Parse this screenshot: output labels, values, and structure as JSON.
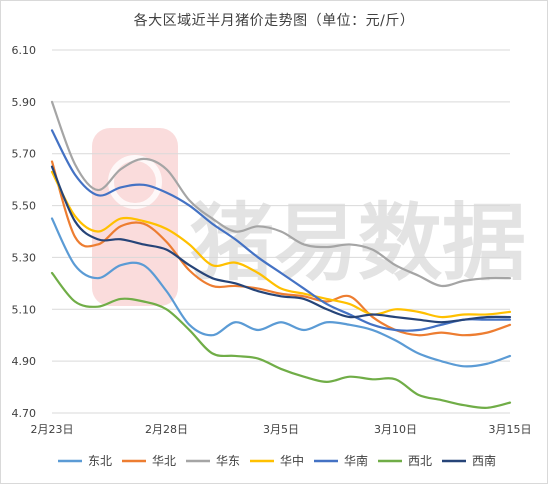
{
  "chart_data": {
    "type": "line",
    "title": "各大区域近半月猪价走势图（单位：元/斤）",
    "watermark": "猪易数据",
    "xlabel": "",
    "ylabel": "",
    "x_ticks": [
      "2月23日",
      "2月28日",
      "3月5日",
      "3月10日",
      "3月15日"
    ],
    "x": [
      "2月23日",
      "2月24日",
      "2月25日",
      "2月26日",
      "2月27日",
      "2月28日",
      "3月1日",
      "3月2日",
      "3月3日",
      "3月4日",
      "3月5日",
      "3月6日",
      "3月7日",
      "3月8日",
      "3月9日",
      "3月10日",
      "3月11日",
      "3月12日",
      "3月13日",
      "3月14日",
      "3月15日"
    ],
    "ylim": [
      4.7,
      6.1
    ],
    "y_ticks": [
      "4.70",
      "4.90",
      "5.10",
      "5.30",
      "5.50",
      "5.70",
      "5.90",
      "6.10"
    ],
    "grid": "horizontal",
    "legend_position": "bottom",
    "series": [
      {
        "name": "东北",
        "color": "#5b9bd5",
        "values": [
          5.45,
          5.27,
          5.22,
          5.27,
          5.27,
          5.17,
          5.04,
          5.0,
          5.05,
          5.02,
          5.05,
          5.02,
          5.05,
          5.04,
          5.02,
          4.98,
          4.93,
          4.9,
          4.88,
          4.89,
          4.92
        ]
      },
      {
        "name": "华北",
        "color": "#ed7d31",
        "values": [
          5.67,
          5.38,
          5.35,
          5.42,
          5.43,
          5.36,
          5.25,
          5.19,
          5.19,
          5.18,
          5.16,
          5.15,
          5.13,
          5.15,
          5.07,
          5.02,
          5.0,
          5.01,
          5.0,
          5.01,
          5.04
        ]
      },
      {
        "name": "华东",
        "color": "#a5a5a5",
        "values": [
          5.9,
          5.66,
          5.56,
          5.64,
          5.68,
          5.64,
          5.52,
          5.45,
          5.4,
          5.42,
          5.4,
          5.35,
          5.34,
          5.35,
          5.33,
          5.27,
          5.23,
          5.19,
          5.21,
          5.22,
          5.22
        ]
      },
      {
        "name": "华中",
        "color": "#ffc000",
        "values": [
          5.63,
          5.46,
          5.4,
          5.45,
          5.44,
          5.41,
          5.35,
          5.27,
          5.28,
          5.24,
          5.18,
          5.16,
          5.14,
          5.12,
          5.08,
          5.1,
          5.09,
          5.07,
          5.08,
          5.08,
          5.09
        ]
      },
      {
        "name": "华南",
        "color": "#4472c4",
        "values": [
          5.79,
          5.62,
          5.54,
          5.57,
          5.58,
          5.55,
          5.5,
          5.43,
          5.37,
          5.3,
          5.24,
          5.18,
          5.12,
          5.08,
          5.04,
          5.02,
          5.02,
          5.04,
          5.06,
          5.06,
          5.06
        ]
      },
      {
        "name": "西北",
        "color": "#70ad47",
        "values": [
          5.24,
          5.13,
          5.11,
          5.14,
          5.13,
          5.1,
          5.02,
          4.93,
          4.92,
          4.91,
          4.87,
          4.84,
          4.82,
          4.84,
          4.83,
          4.83,
          4.77,
          4.75,
          4.73,
          4.72,
          4.74
        ]
      },
      {
        "name": "西南",
        "color": "#264478",
        "values": [
          5.65,
          5.44,
          5.37,
          5.37,
          5.35,
          5.33,
          5.27,
          5.22,
          5.2,
          5.17,
          5.15,
          5.14,
          5.1,
          5.07,
          5.08,
          5.07,
          5.06,
          5.05,
          5.06,
          5.07,
          5.07
        ]
      }
    ]
  }
}
